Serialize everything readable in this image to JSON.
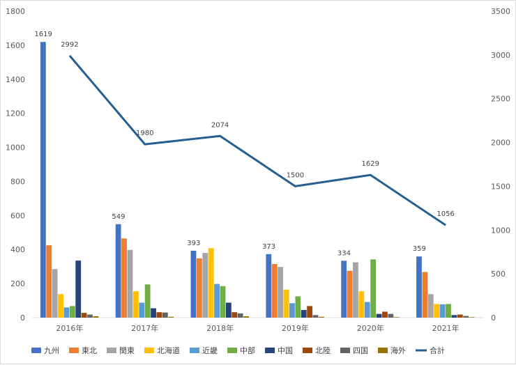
{
  "chart_data": {
    "type": "bar",
    "categories": [
      "2016年",
      "2017年",
      "2018年",
      "2019年",
      "2020年",
      "2021年"
    ],
    "series": [
      {
        "name": "九州",
        "color": "#4472C4",
        "values": [
          1619,
          549,
          393,
          373,
          334,
          359
        ]
      },
      {
        "name": "東北",
        "color": "#ED7D31",
        "values": [
          425,
          465,
          348,
          315,
          275,
          268
        ]
      },
      {
        "name": "関東",
        "color": "#A5A5A5",
        "values": [
          285,
          398,
          380,
          298,
          325,
          138
        ]
      },
      {
        "name": "北海道",
        "color": "#FFC000",
        "values": [
          138,
          155,
          408,
          165,
          155,
          80
        ]
      },
      {
        "name": "近畿",
        "color": "#5B9BD5",
        "values": [
          60,
          88,
          198,
          85,
          92,
          78
        ]
      },
      {
        "name": "中部",
        "color": "#70AD47",
        "values": [
          68,
          195,
          185,
          125,
          342,
          80
        ]
      },
      {
        "name": "中国",
        "color": "#264478",
        "values": [
          335,
          55,
          88,
          45,
          22,
          15
        ]
      },
      {
        "name": "北陸",
        "color": "#9E480E",
        "values": [
          28,
          32,
          32,
          68,
          35,
          18
        ]
      },
      {
        "name": "四国",
        "color": "#636363",
        "values": [
          18,
          30,
          25,
          15,
          22,
          10
        ]
      },
      {
        "name": "海外",
        "color": "#997300",
        "values": [
          8,
          5,
          8,
          5,
          3,
          3
        ]
      }
    ],
    "line_series": {
      "name": "合計",
      "color": "#255E91",
      "values": [
        2992,
        1980,
        2074,
        1500,
        1629,
        1056
      ]
    },
    "bar_labels": [
      "1619",
      "549",
      "393",
      "373",
      "334",
      "359"
    ],
    "line_labels": [
      "2992",
      "1980",
      "2074",
      "1500",
      "1629",
      "1056"
    ],
    "y_left": {
      "min": 0,
      "max": 1800,
      "step": 200,
      "ticks": [
        "0",
        "200",
        "400",
        "600",
        "800",
        "1000",
        "1200",
        "1400",
        "1600",
        "1800"
      ]
    },
    "y_right": {
      "min": 0,
      "max": 3500,
      "step": 500,
      "ticks": [
        "0",
        "500",
        "1000",
        "1500",
        "2000",
        "2500",
        "3000",
        "3500"
      ]
    },
    "legend_position": "bottom",
    "grid": false,
    "title": "",
    "xlabel": "",
    "ylabel": ""
  }
}
